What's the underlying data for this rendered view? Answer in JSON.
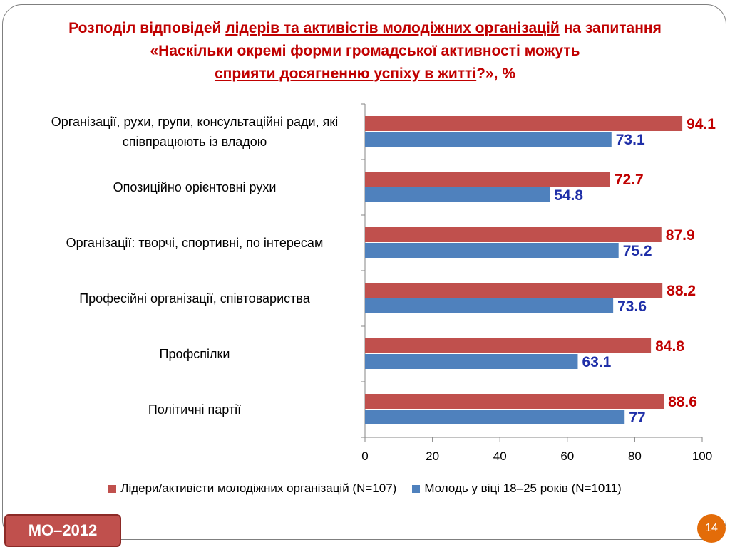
{
  "title": {
    "line1_pre": "Розподіл відповідей ",
    "line1_underlined": "лідерів та активістів молодіжних організацій",
    "line1_post": " на запитання",
    "line2": "«Наскільки окремі форми громадської активності можуть",
    "line3_underlined": "сприяти досягненню успіху в житті",
    "line3_post": "?»,  %"
  },
  "badge": "МО–2012",
  "page_number": "14",
  "colors": {
    "leaders": "#c0504d",
    "youth": "#4f81bd",
    "leaders_label": "#c00000",
    "youth_label": "#1f2fa8"
  },
  "chart_data": {
    "type": "bar",
    "orientation": "horizontal",
    "categories": [
      "Організації, рухи, групи, консультаційні ради, які співпрацюють із владою",
      "Опозиційно орієнтовні рухи",
      "Організації: творчі, спортивні, по інтересам",
      "Професійні організації, співтовариства",
      "Профспілки",
      "Політичні партії"
    ],
    "series": [
      {
        "name": "Лідери/активісти молодіжних організацій  (N=107)",
        "values": [
          94.1,
          72.7,
          87.9,
          88.2,
          84.8,
          88.6
        ],
        "labels": [
          "94.1",
          "72.7",
          "87.9",
          "88.2",
          "84.8",
          "88.6"
        ]
      },
      {
        "name": "Молодь у віці 18–25 років  (N=1011)",
        "values": [
          73.1,
          54.8,
          75.2,
          73.6,
          63.1,
          77
        ],
        "labels": [
          "73.1",
          "54.8",
          "75.2",
          "73.6",
          "63.1",
          "77"
        ]
      }
    ],
    "xlim": [
      0,
      100
    ],
    "xticks": [
      "0",
      "20",
      "40",
      "60",
      "80",
      "100"
    ],
    "legend_position": "bottom",
    "grid": false
  }
}
